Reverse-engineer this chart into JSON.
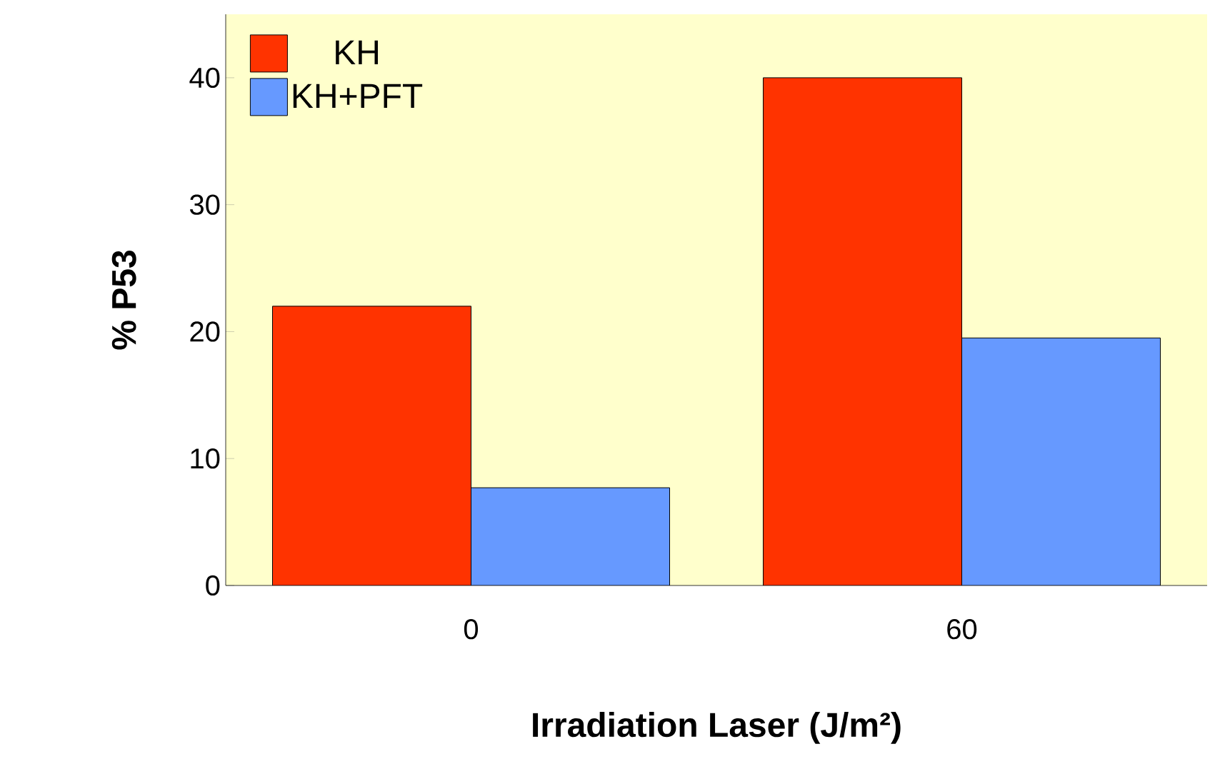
{
  "chart_data": {
    "type": "bar",
    "xlabel": "Irradiation Laser (J/m²)",
    "ylabel": "% P53",
    "categories": [
      "0",
      "60"
    ],
    "series": [
      {
        "name": "KH",
        "color": "#ff3300",
        "values": [
          22,
          40
        ]
      },
      {
        "name": "KH+PFT",
        "color": "#6699ff",
        "values": [
          7.7,
          19.5
        ]
      }
    ],
    "ylim": [
      0,
      45
    ],
    "yticks": [
      0,
      10,
      20,
      30,
      40
    ],
    "grid": false,
    "legend": "top left"
  }
}
